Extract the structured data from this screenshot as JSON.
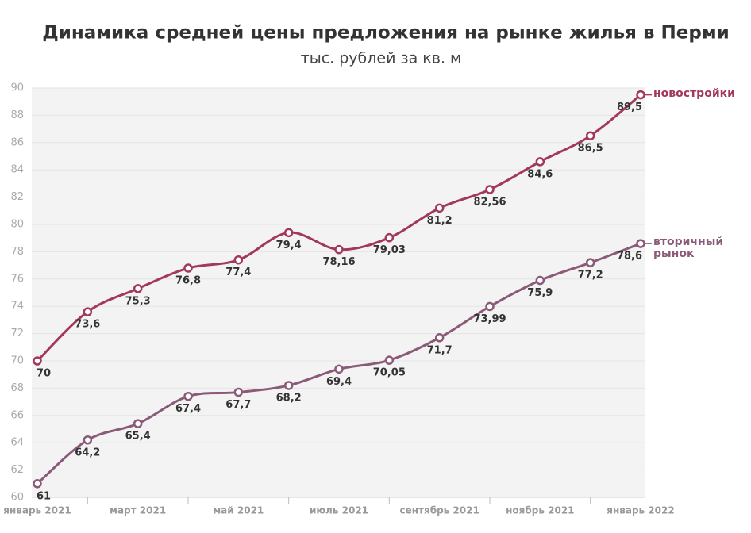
{
  "chart_data": {
    "type": "line",
    "title": "Динамика средней цены предложения на рынке жилья в Перми",
    "subtitle": "тыс. рублей за кв. м",
    "categories": [
      "январь 2021",
      null,
      "март 2021",
      null,
      "май 2021",
      null,
      "июль 2021",
      null,
      "сентябрь 2021",
      null,
      "ноябрь 2021",
      null,
      "январь 2022"
    ],
    "series": [
      {
        "name": "новостройки",
        "color": "#a3395a",
        "values": [
          70,
          73.6,
          75.3,
          76.8,
          77.4,
          79.4,
          78.16,
          79.03,
          81.2,
          82.56,
          84.6,
          86.5,
          89.5
        ],
        "value_labels": [
          "70",
          "73,6",
          "75,3",
          "76,8",
          "77,4",
          "79,4",
          "78,16",
          "79,03",
          "81,2",
          "82,56",
          "84,6",
          "86,5",
          "89,5"
        ]
      },
      {
        "name": "вторичный рынок",
        "color": "#8a5a78",
        "values": [
          61,
          64.2,
          65.4,
          67.4,
          67.7,
          68.2,
          69.4,
          70.05,
          71.7,
          73.99,
          75.9,
          77.2,
          78.6
        ],
        "value_labels": [
          "61",
          "64,2",
          "65,4",
          "67,4",
          "67,7",
          "68,2",
          "69,4",
          "70,05",
          "71,7",
          "73,99",
          "75,9",
          "77,2",
          "78,6"
        ]
      }
    ],
    "ylim": [
      60,
      90
    ],
    "yticks": [
      60,
      62,
      64,
      66,
      68,
      70,
      72,
      74,
      76,
      78,
      80,
      82,
      84,
      86,
      88,
      90
    ],
    "grid": true
  }
}
